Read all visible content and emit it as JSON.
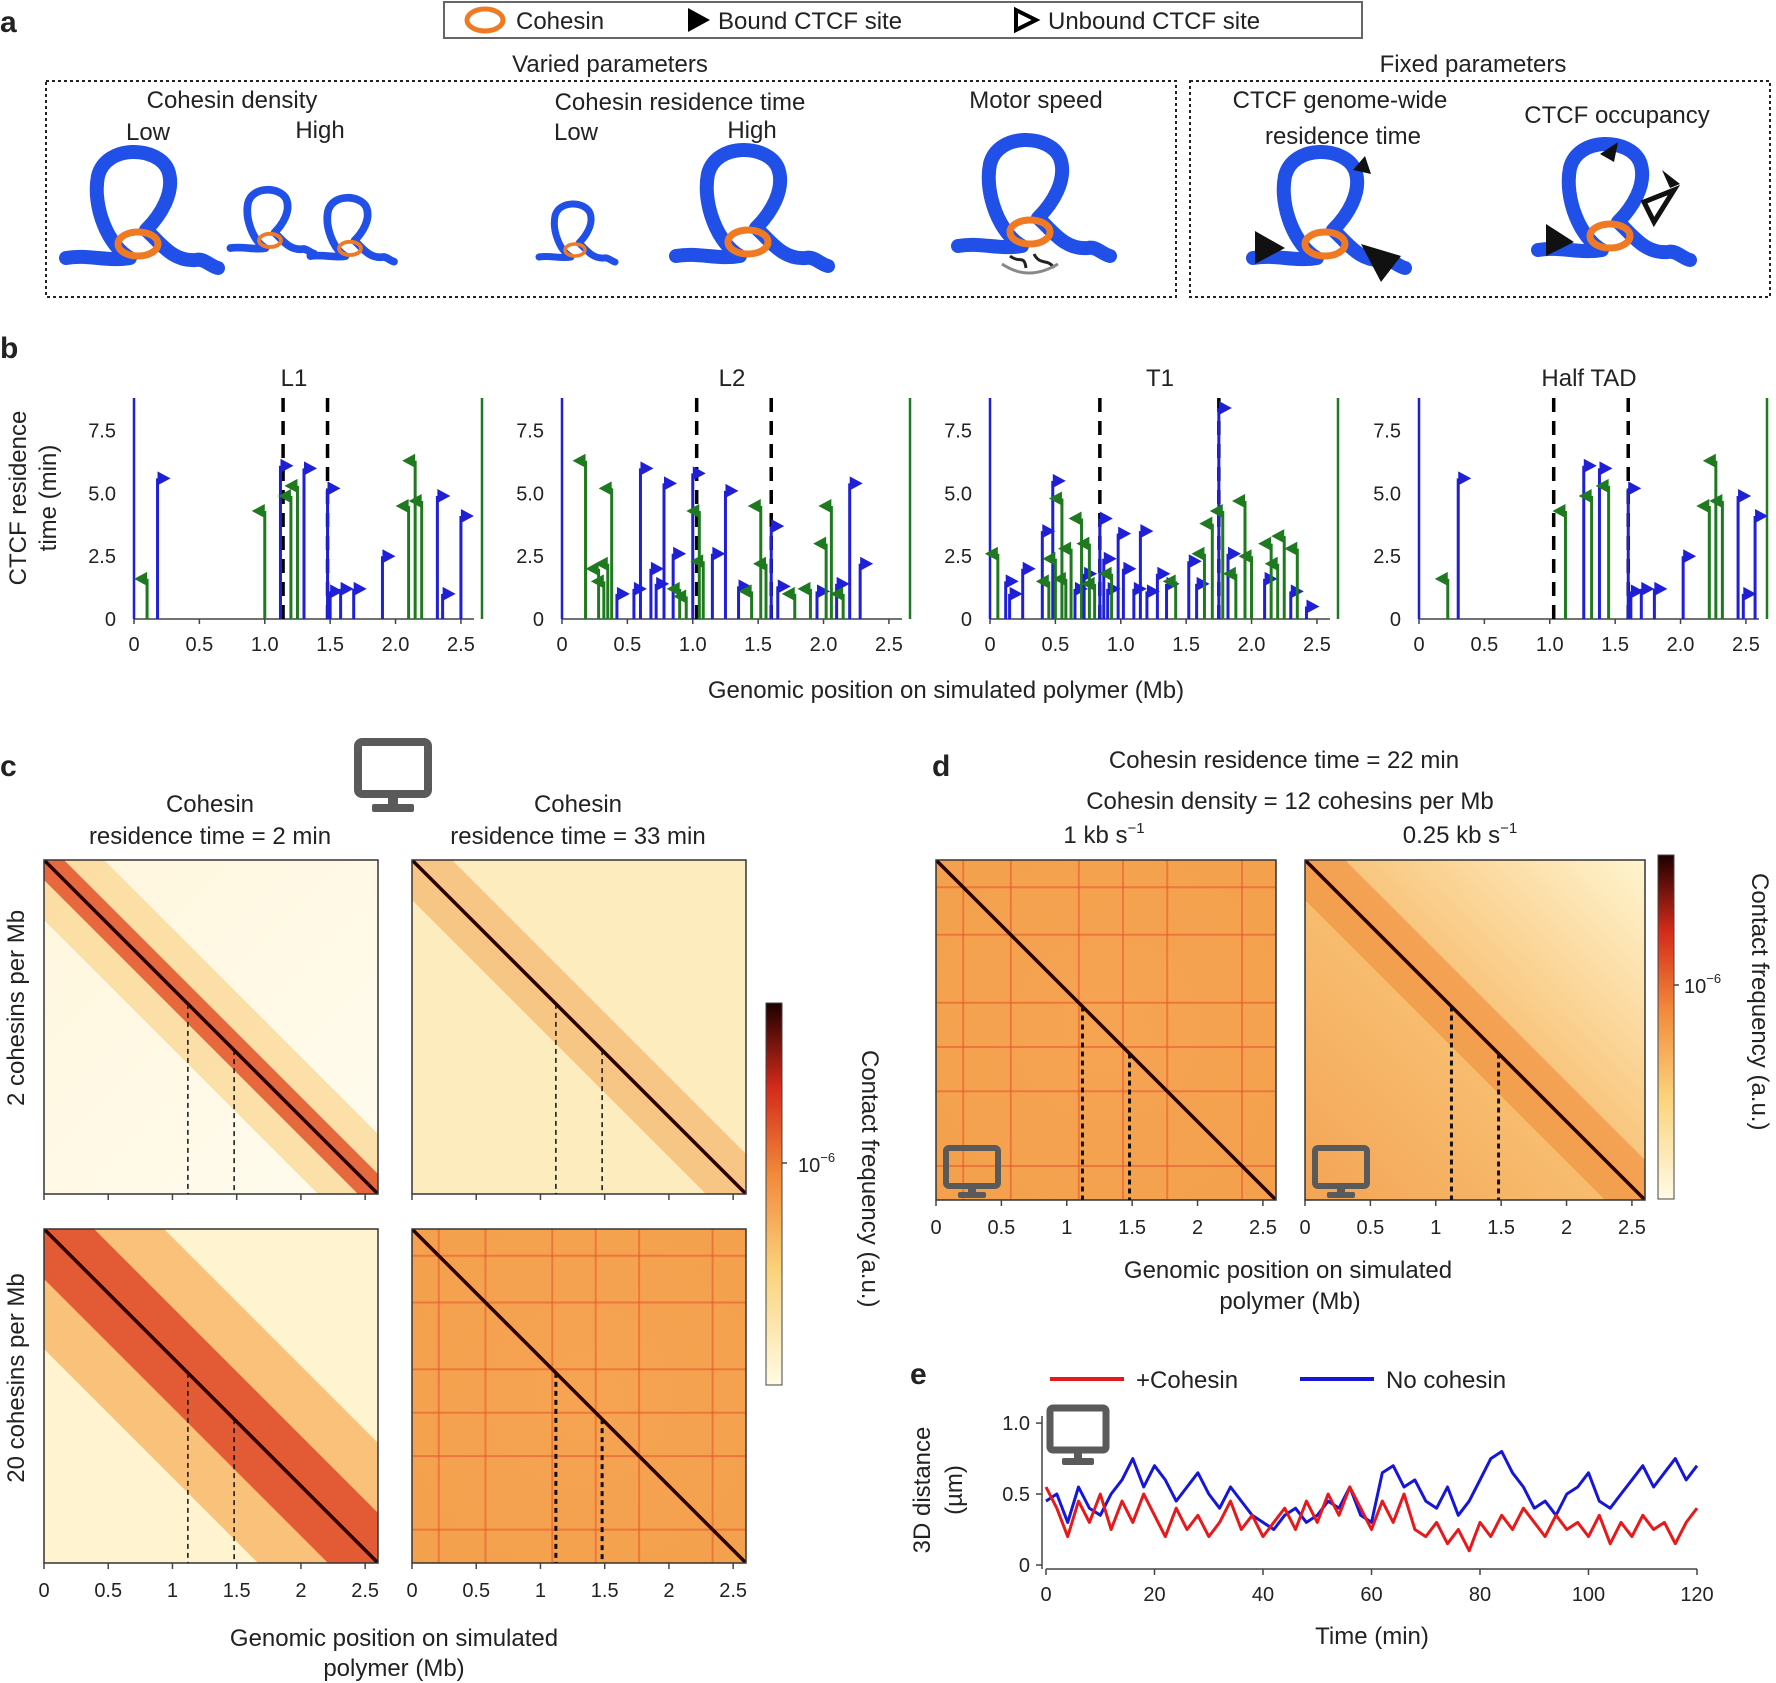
{
  "colors": {
    "bound": "#1f1fd6",
    "green": "#1f7a1f",
    "cohesin": "#f07a24",
    "dna": "#2050e8",
    "red": "#e8191b",
    "blue": "#1616d8",
    "heat_dark": "#2a0000",
    "heat_mid": "#e84a1a",
    "heat_light": "#fffbe5"
  },
  "legend": {
    "cohesin": "Cohesin",
    "bound": "Bound CTCF site",
    "unbound": "Unbound CTCF site"
  },
  "panel_a": {
    "label": "a",
    "varied_title": "Varied parameters",
    "fixed_title": "Fixed parameters",
    "density": "Cohesin density",
    "residence": "Cohesin residence time",
    "low": "Low",
    "high": "High",
    "motor": "Motor speed",
    "ctcf_res_line1": "CTCF genome-wide",
    "ctcf_res_line2": "residence time",
    "ctcf_occ": "CTCF occupancy"
  },
  "panel_b": {
    "label": "b",
    "ylabel_line1": "CTCF residence",
    "ylabel_line2": "time (min)",
    "xlabel": "Genomic position on simulated polymer (Mb)"
  },
  "panel_c": {
    "label": "c",
    "col1_line1": "Cohesin",
    "col1_line2": "residence time = 2 min",
    "col2_line1": "Cohesin",
    "col2_line2": "residence time = 33 min",
    "row1": "2 cohesins per Mb",
    "row2": "20 cohesins per Mb",
    "xlabel_line1": "Genomic position on simulated",
    "xlabel_line2": "polymer (Mb)",
    "colorbar_label": "Contact frequency (a.u.)",
    "colorbar_tick": "10"
  },
  "panel_d": {
    "label": "d",
    "title1": "Cohesin residence time = 22 min",
    "title2": "Cohesin density = 12 cohesins per Mb",
    "speed1": "1 kb s",
    "speed2": "0.25 kb s",
    "xlabel_line1": "Genomic position on simulated",
    "xlabel_line2": "polymer (Mb)",
    "colorbar_label": "Contact frequency (a.u.)",
    "colorbar_tick": "10"
  },
  "panel_e": {
    "label": "e",
    "legend_red": "+Cohesin",
    "legend_blue": "No cohesin",
    "ylabel_line1": "3D distance",
    "ylabel_line2": "(µm)",
    "xlabel": "Time (min)"
  },
  "chart_data": [
    {
      "type": "lollipop",
      "title": "L1",
      "ylim": [
        0,
        8.8
      ],
      "xlim": [
        0,
        2.6
      ],
      "yticks": [
        "0",
        "2.5",
        "5.0",
        "7.5"
      ],
      "xticks": [
        "0",
        "0.5",
        "1.0",
        "1.5",
        "2.0",
        "2.5"
      ],
      "boundaries": [
        1.14,
        1.48
      ],
      "sites": [
        {
          "x": 0.1,
          "y": 1.6,
          "s": "g"
        },
        {
          "x": 0.18,
          "y": 5.6,
          "s": "b"
        },
        {
          "x": 1.0,
          "y": 4.3,
          "s": "g"
        },
        {
          "x": 1.12,
          "y": 6.1,
          "s": "b"
        },
        {
          "x": 1.2,
          "y": 4.9,
          "s": "g"
        },
        {
          "x": 1.25,
          "y": 5.3,
          "s": "g"
        },
        {
          "x": 1.3,
          "y": 6.0,
          "s": "b"
        },
        {
          "x": 1.48,
          "y": 5.2,
          "s": "b"
        },
        {
          "x": 1.5,
          "y": 1.1,
          "s": "b"
        },
        {
          "x": 1.58,
          "y": 1.2,
          "s": "b"
        },
        {
          "x": 1.68,
          "y": 1.2,
          "s": "b"
        },
        {
          "x": 1.9,
          "y": 2.5,
          "s": "b"
        },
        {
          "x": 2.1,
          "y": 4.5,
          "s": "g"
        },
        {
          "x": 2.15,
          "y": 6.3,
          "s": "g"
        },
        {
          "x": 2.2,
          "y": 4.7,
          "s": "g"
        },
        {
          "x": 2.32,
          "y": 4.9,
          "s": "b"
        },
        {
          "x": 2.36,
          "y": 1.0,
          "s": "b"
        },
        {
          "x": 2.5,
          "y": 4.1,
          "s": "b"
        }
      ]
    },
    {
      "type": "lollipop",
      "title": "L2",
      "ylim": [
        0,
        8.8
      ],
      "xlim": [
        0,
        2.6
      ],
      "yticks": [
        "0",
        "2.5",
        "5.0",
        "7.5"
      ],
      "xticks": [
        "0",
        "0.5",
        "1.0",
        "1.5",
        "2.0",
        "2.5"
      ],
      "boundaries": [
        1.03,
        1.6
      ],
      "sites": [
        {
          "x": 0.18,
          "y": 6.3,
          "s": "g"
        },
        {
          "x": 0.28,
          "y": 2.0,
          "s": "g"
        },
        {
          "x": 0.32,
          "y": 1.5,
          "s": "g"
        },
        {
          "x": 0.35,
          "y": 2.2,
          "s": "g"
        },
        {
          "x": 0.38,
          "y": 5.2,
          "s": "g"
        },
        {
          "x": 0.42,
          "y": 1.0,
          "s": "b"
        },
        {
          "x": 0.55,
          "y": 1.2,
          "s": "b"
        },
        {
          "x": 0.6,
          "y": 6.0,
          "s": "b"
        },
        {
          "x": 0.68,
          "y": 2.0,
          "s": "b"
        },
        {
          "x": 0.72,
          "y": 1.4,
          "s": "b"
        },
        {
          "x": 0.78,
          "y": 5.4,
          "s": "b"
        },
        {
          "x": 0.85,
          "y": 2.6,
          "s": "b"
        },
        {
          "x": 0.9,
          "y": 1.2,
          "s": "g"
        },
        {
          "x": 0.95,
          "y": 0.9,
          "s": "g"
        },
        {
          "x": 1.0,
          "y": 5.8,
          "s": "b"
        },
        {
          "x": 1.05,
          "y": 4.3,
          "s": "g"
        },
        {
          "x": 1.08,
          "y": 2.3,
          "s": "g"
        },
        {
          "x": 1.15,
          "y": 2.6,
          "s": "b"
        },
        {
          "x": 1.25,
          "y": 5.1,
          "s": "b"
        },
        {
          "x": 1.35,
          "y": 1.3,
          "s": "b"
        },
        {
          "x": 1.45,
          "y": 1.1,
          "s": "g"
        },
        {
          "x": 1.52,
          "y": 4.5,
          "s": "g"
        },
        {
          "x": 1.56,
          "y": 2.2,
          "s": "g"
        },
        {
          "x": 1.6,
          "y": 3.7,
          "s": "b"
        },
        {
          "x": 1.65,
          "y": 1.3,
          "s": "b"
        },
        {
          "x": 1.78,
          "y": 1.0,
          "s": "g"
        },
        {
          "x": 1.9,
          "y": 1.2,
          "s": "g"
        },
        {
          "x": 1.95,
          "y": 1.1,
          "s": "b"
        },
        {
          "x": 2.02,
          "y": 3.0,
          "s": "g"
        },
        {
          "x": 2.06,
          "y": 4.5,
          "s": "g"
        },
        {
          "x": 2.1,
          "y": 1.4,
          "s": "b"
        },
        {
          "x": 2.15,
          "y": 1.0,
          "s": "g"
        },
        {
          "x": 2.2,
          "y": 5.4,
          "s": "b"
        },
        {
          "x": 2.28,
          "y": 2.2,
          "s": "b"
        }
      ]
    },
    {
      "type": "lollipop",
      "title": "T1",
      "ylim": [
        0,
        8.8
      ],
      "xlim": [
        0,
        2.6
      ],
      "yticks": [
        "0",
        "2.5",
        "5.0",
        "7.5"
      ],
      "xticks": [
        "0",
        "0.5",
        "1.0",
        "1.5",
        "2.0",
        "2.5"
      ],
      "boundaries": [
        0.84,
        1.75
      ],
      "sites": [
        {
          "x": 0.06,
          "y": 2.6,
          "s": "g"
        },
        {
          "x": 0.12,
          "y": 1.5,
          "s": "b"
        },
        {
          "x": 0.15,
          "y": 1.0,
          "s": "b"
        },
        {
          "x": 0.25,
          "y": 2.0,
          "s": "b"
        },
        {
          "x": 0.4,
          "y": 3.5,
          "s": "b"
        },
        {
          "x": 0.45,
          "y": 1.5,
          "s": "g"
        },
        {
          "x": 0.48,
          "y": 5.5,
          "s": "b"
        },
        {
          "x": 0.5,
          "y": 2.4,
          "s": "g"
        },
        {
          "x": 0.55,
          "y": 4.8,
          "s": "g"
        },
        {
          "x": 0.58,
          "y": 1.6,
          "s": "g"
        },
        {
          "x": 0.62,
          "y": 2.8,
          "s": "g"
        },
        {
          "x": 0.65,
          "y": 1.2,
          "s": "b"
        },
        {
          "x": 0.7,
          "y": 4.0,
          "s": "g"
        },
        {
          "x": 0.72,
          "y": 1.8,
          "s": "b"
        },
        {
          "x": 0.76,
          "y": 3.0,
          "s": "g"
        },
        {
          "x": 0.8,
          "y": 1.4,
          "s": "g"
        },
        {
          "x": 0.84,
          "y": 4.0,
          "s": "b"
        },
        {
          "x": 0.87,
          "y": 2.4,
          "s": "b"
        },
        {
          "x": 0.9,
          "y": 1.2,
          "s": "b"
        },
        {
          "x": 0.93,
          "y": 1.8,
          "s": "g"
        },
        {
          "x": 0.98,
          "y": 3.4,
          "s": "b"
        },
        {
          "x": 1.02,
          "y": 2.0,
          "s": "b"
        },
        {
          "x": 1.1,
          "y": 1.2,
          "s": "b"
        },
        {
          "x": 1.15,
          "y": 3.5,
          "s": "b"
        },
        {
          "x": 1.2,
          "y": 1.1,
          "s": "b"
        },
        {
          "x": 1.28,
          "y": 1.8,
          "s": "b"
        },
        {
          "x": 1.35,
          "y": 1.4,
          "s": "b"
        },
        {
          "x": 1.42,
          "y": 1.5,
          "s": "g"
        },
        {
          "x": 1.52,
          "y": 2.3,
          "s": "b"
        },
        {
          "x": 1.58,
          "y": 1.4,
          "s": "b"
        },
        {
          "x": 1.64,
          "y": 2.6,
          "s": "g"
        },
        {
          "x": 1.7,
          "y": 3.8,
          "s": "g"
        },
        {
          "x": 1.75,
          "y": 8.4,
          "s": "b"
        },
        {
          "x": 1.78,
          "y": 4.3,
          "s": "g"
        },
        {
          "x": 1.82,
          "y": 2.6,
          "s": "b"
        },
        {
          "x": 1.88,
          "y": 1.8,
          "s": "g"
        },
        {
          "x": 1.95,
          "y": 4.7,
          "s": "g"
        },
        {
          "x": 2.0,
          "y": 2.5,
          "s": "g"
        },
        {
          "x": 2.1,
          "y": 1.6,
          "s": "b"
        },
        {
          "x": 2.15,
          "y": 3.0,
          "s": "g"
        },
        {
          "x": 2.2,
          "y": 2.2,
          "s": "g"
        },
        {
          "x": 2.25,
          "y": 3.3,
          "s": "g"
        },
        {
          "x": 2.3,
          "y": 1.1,
          "s": "b"
        },
        {
          "x": 2.35,
          "y": 2.8,
          "s": "g"
        },
        {
          "x": 2.42,
          "y": 0.5,
          "s": "b"
        }
      ]
    },
    {
      "type": "lollipop",
      "title": "Half TAD",
      "ylim": [
        0,
        8.8
      ],
      "xlim": [
        0,
        2.6
      ],
      "yticks": [
        "0",
        "2.5",
        "5.0",
        "7.5"
      ],
      "xticks": [
        "0",
        "0.5",
        "1.0",
        "1.5",
        "2.0",
        "2.5"
      ],
      "boundaries": [
        1.03,
        1.6
      ],
      "sites": [
        {
          "x": 0.22,
          "y": 1.6,
          "s": "g"
        },
        {
          "x": 0.3,
          "y": 5.6,
          "s": "b"
        },
        {
          "x": 1.12,
          "y": 4.3,
          "s": "g"
        },
        {
          "x": 1.26,
          "y": 6.1,
          "s": "b"
        },
        {
          "x": 1.32,
          "y": 4.9,
          "s": "g"
        },
        {
          "x": 1.38,
          "y": 6.0,
          "s": "b"
        },
        {
          "x": 1.45,
          "y": 5.3,
          "s": "g"
        },
        {
          "x": 1.6,
          "y": 5.2,
          "s": "b"
        },
        {
          "x": 1.62,
          "y": 1.1,
          "s": "b"
        },
        {
          "x": 1.7,
          "y": 1.2,
          "s": "b"
        },
        {
          "x": 1.8,
          "y": 1.2,
          "s": "b"
        },
        {
          "x": 2.02,
          "y": 2.5,
          "s": "b"
        },
        {
          "x": 2.22,
          "y": 4.5,
          "s": "g"
        },
        {
          "x": 2.27,
          "y": 6.3,
          "s": "g"
        },
        {
          "x": 2.32,
          "y": 4.7,
          "s": "g"
        },
        {
          "x": 2.44,
          "y": 4.9,
          "s": "b"
        },
        {
          "x": 2.48,
          "y": 1.0,
          "s": "b"
        },
        {
          "x": 2.57,
          "y": 4.1,
          "s": "b"
        }
      ]
    },
    {
      "type": "heatmap",
      "panel": "c",
      "matrices": [
        {
          "density": "2 cohesins per Mb",
          "residence_min": 2
        },
        {
          "density": "2 cohesins per Mb",
          "residence_min": 33
        },
        {
          "density": "20 cohesins per Mb",
          "residence_min": 2
        },
        {
          "density": "20 cohesins per Mb",
          "residence_min": 33
        }
      ],
      "xticks": [
        "0",
        "0.5",
        "1",
        "1.5",
        "2",
        "2.5"
      ],
      "boundaries": [
        1.12,
        1.48
      ],
      "colorbar": "Contact frequency (a.u.)"
    },
    {
      "type": "heatmap",
      "panel": "d",
      "matrices": [
        {
          "speed": "1 kb s-1"
        },
        {
          "speed": "0.25 kb s-1"
        }
      ],
      "xticks": [
        "0",
        "0.5",
        "1",
        "1.5",
        "2",
        "2.5"
      ],
      "boundaries": [
        1.12,
        1.48
      ],
      "colorbar": "Contact frequency (a.u.)"
    },
    {
      "type": "line",
      "panel": "e",
      "x": [
        0,
        2,
        4,
        6,
        8,
        10,
        12,
        14,
        16,
        18,
        20,
        22,
        24,
        26,
        28,
        30,
        32,
        34,
        36,
        38,
        40,
        42,
        44,
        46,
        48,
        50,
        52,
        54,
        56,
        58,
        60,
        62,
        64,
        66,
        68,
        70,
        72,
        74,
        76,
        78,
        80,
        82,
        84,
        86,
        88,
        90,
        92,
        94,
        96,
        98,
        100,
        102,
        104,
        106,
        108,
        110,
        112,
        114,
        116,
        118,
        120
      ],
      "xlim": [
        0,
        120
      ],
      "ylim": [
        0,
        1.05
      ],
      "xticks": [
        "0",
        "20",
        "40",
        "60",
        "80",
        "100",
        "120"
      ],
      "yticks": [
        "0",
        "0.5",
        "1.0"
      ],
      "series": [
        {
          "name": "+Cohesin",
          "values": [
            0.55,
            0.4,
            0.2,
            0.45,
            0.3,
            0.5,
            0.25,
            0.45,
            0.3,
            0.5,
            0.35,
            0.2,
            0.4,
            0.25,
            0.35,
            0.2,
            0.3,
            0.45,
            0.25,
            0.35,
            0.2,
            0.3,
            0.4,
            0.25,
            0.45,
            0.3,
            0.5,
            0.35,
            0.55,
            0.4,
            0.25,
            0.45,
            0.3,
            0.5,
            0.25,
            0.2,
            0.3,
            0.15,
            0.25,
            0.1,
            0.3,
            0.2,
            0.35,
            0.25,
            0.4,
            0.3,
            0.2,
            0.35,
            0.25,
            0.3,
            0.2,
            0.35,
            0.15,
            0.3,
            0.2,
            0.35,
            0.25,
            0.3,
            0.15,
            0.3,
            0.4
          ]
        },
        {
          "name": "No cohesin",
          "values": [
            0.45,
            0.5,
            0.3,
            0.55,
            0.4,
            0.35,
            0.5,
            0.6,
            0.75,
            0.55,
            0.7,
            0.6,
            0.45,
            0.55,
            0.65,
            0.5,
            0.4,
            0.55,
            0.45,
            0.35,
            0.3,
            0.25,
            0.35,
            0.4,
            0.3,
            0.35,
            0.45,
            0.4,
            0.55,
            0.35,
            0.3,
            0.65,
            0.7,
            0.55,
            0.6,
            0.45,
            0.4,
            0.55,
            0.35,
            0.45,
            0.6,
            0.75,
            0.8,
            0.65,
            0.55,
            0.4,
            0.45,
            0.35,
            0.5,
            0.55,
            0.65,
            0.45,
            0.4,
            0.5,
            0.6,
            0.7,
            0.55,
            0.65,
            0.75,
            0.6,
            0.7
          ]
        }
      ]
    }
  ]
}
